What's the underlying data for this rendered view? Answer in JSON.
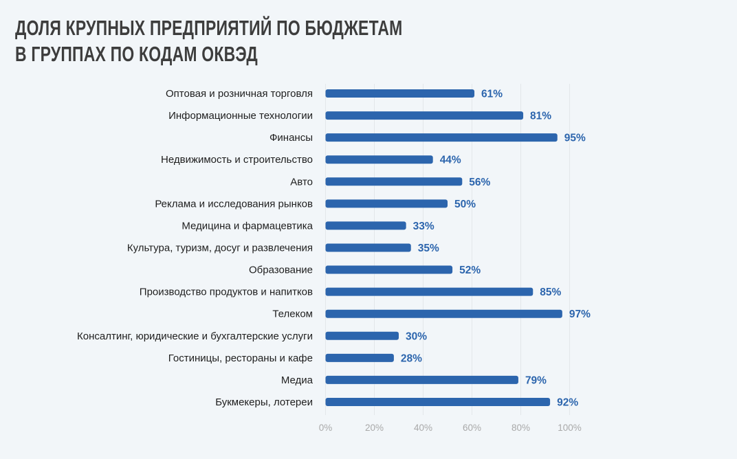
{
  "chart_data": {
    "type": "bar",
    "orientation": "horizontal",
    "title": [
      "ДОЛЯ КРУПНЫХ ПРЕДПРИЯТИЙ ПО БЮДЖЕТАМ",
      "В ГРУППАХ ПО КОДАМ ОКВЭД"
    ],
    "categories": [
      "Оптовая и розничная торговля",
      "Информационные технологии",
      "Финансы",
      "Недвижимость и строительство",
      "Авто",
      "Реклама и исследования рынков",
      "Медицина и фармацевтика",
      "Культура, туризм, досуг и развлечения",
      "Образование",
      "Производство продуктов и напитков",
      "Телеком",
      "Консалтинг, юридические и бухгалтерские услуги",
      "Гостиницы, рестораны и кафе",
      "Медиа",
      "Букмекеры, лотереи"
    ],
    "values": [
      61,
      81,
      95,
      44,
      56,
      50,
      33,
      35,
      52,
      85,
      97,
      30,
      28,
      79,
      92
    ],
    "data_labels": [
      "61%",
      "81%",
      "95%",
      "44%",
      "56%",
      "50%",
      "33%",
      "35%",
      "52%",
      "85%",
      "97%",
      "30%",
      "28%",
      "79%",
      "92%"
    ],
    "xlim": [
      0,
      100
    ],
    "xticks": [
      0,
      20,
      40,
      60,
      80,
      100
    ],
    "xtick_labels": [
      "0%",
      "20%",
      "40%",
      "60%",
      "80%",
      "100%"
    ],
    "xlabel": "",
    "ylabel": "",
    "grid": true,
    "legend": "none",
    "colors": {
      "bar": "#2c65ad",
      "label": "#2c65ad",
      "tick": "#a9a9a9",
      "grid": "#e3e7ea",
      "category": "#1e1e1e"
    }
  }
}
